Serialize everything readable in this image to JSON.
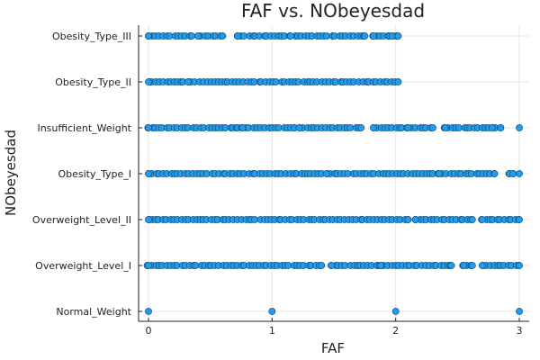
{
  "chart_data": {
    "type": "scatter",
    "title": "FAF vs. NObeyesdad",
    "xlabel": "FAF",
    "ylabel": "NObeyesdad",
    "xlim": [
      -0.08,
      3.08
    ],
    "xticks": [
      0,
      1,
      2,
      3
    ],
    "categories": [
      "Normal_Weight",
      "Overweight_Level_I",
      "Overweight_Level_II",
      "Obesity_Type_I",
      "Insufficient_Weight",
      "Obesity_Type_II",
      "Obesity_Type_III"
    ],
    "grid": true,
    "legend": "none",
    "marker_color": "#1f9bf0",
    "series": [
      {
        "category": "Obesity_Type_III",
        "x_ranges": [
          [
            0,
            0.35
          ],
          [
            0.4,
            0.6
          ],
          [
            0.72,
            1.1
          ],
          [
            1.15,
            1.75
          ],
          [
            1.82,
            1.95
          ],
          [
            1.97,
            2.02
          ]
        ]
      },
      {
        "category": "Obesity_Type_II",
        "x_ranges": [
          [
            0,
            0.28
          ],
          [
            0.32,
            2.02
          ]
        ]
      },
      {
        "category": "Insufficient_Weight",
        "x_ranges": [
          [
            0,
            0.72
          ],
          [
            0.76,
            1.18
          ],
          [
            1.22,
            1.72
          ],
          [
            1.82,
            2.05
          ],
          [
            2.1,
            2.3
          ],
          [
            2.4,
            2.75
          ],
          [
            2.78,
            2.85
          ],
          [
            3.0,
            3.0
          ]
        ]
      },
      {
        "category": "Obesity_Type_I",
        "x_ranges": [
          [
            0,
            1.4
          ],
          [
            1.44,
            2.3
          ],
          [
            2.35,
            2.8
          ],
          [
            2.92,
            2.95
          ],
          [
            3.0,
            3.0
          ]
        ]
      },
      {
        "category": "Overweight_Level_II",
        "x_ranges": [
          [
            0,
            2.1
          ],
          [
            2.16,
            2.62
          ],
          [
            2.7,
            3.0
          ]
        ]
      },
      {
        "category": "Overweight_Level_I",
        "x_ranges": [
          [
            0,
            1.4
          ],
          [
            1.48,
            1.85
          ],
          [
            1.88,
            2.45
          ],
          [
            2.55,
            2.62
          ],
          [
            2.7,
            3.0
          ]
        ]
      },
      {
        "category": "Normal_Weight",
        "x_values": [
          0,
          1,
          2,
          3
        ]
      }
    ]
  }
}
